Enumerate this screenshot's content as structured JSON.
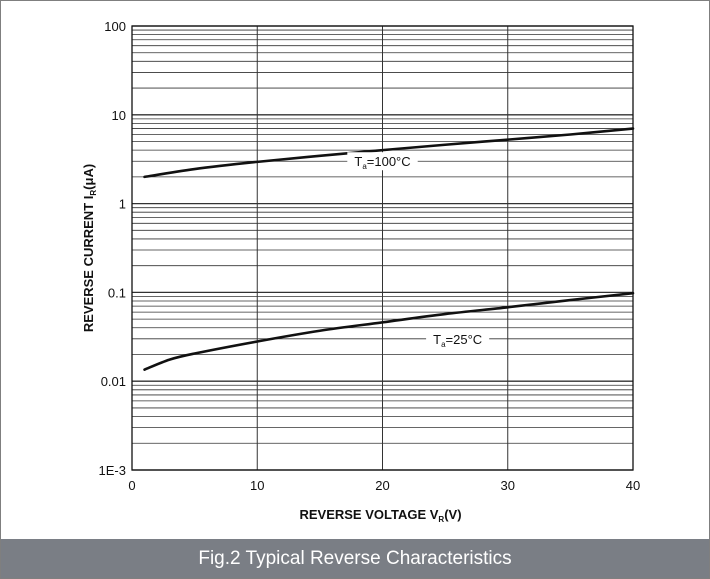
{
  "caption": "Fig.2 Typical Reverse Characteristics",
  "chart_data": {
    "type": "line",
    "xlabel": {
      "main": "REVERSE VOLTAGE",
      "symbol": "V",
      "subscript": "R",
      "unit": "(V)"
    },
    "ylabel": {
      "main": "REVERSE CURRENT",
      "symbol": "I",
      "subscript": "R",
      "unit": "(μA)"
    },
    "xlim": [
      0,
      40
    ],
    "ylim": [
      0.001,
      100
    ],
    "yscale": "log",
    "grid": true,
    "x_ticks": [
      0,
      10,
      20,
      30,
      40
    ],
    "x_tick_labels": [
      "0",
      "10",
      "20",
      "30",
      "40"
    ],
    "y_ticks": [
      0.001,
      0.01,
      0.1,
      1,
      10,
      100
    ],
    "y_tick_labels": [
      "1E-3",
      "0.01",
      "0.1",
      "1",
      "10",
      "100"
    ],
    "series": [
      {
        "annotation": {
          "prefix": "T",
          "subscript": "a",
          "suffix": "=100°C"
        },
        "x": [
          1,
          5,
          10,
          15,
          20,
          25,
          30,
          35,
          40
        ],
        "y": [
          2.0,
          2.45,
          2.95,
          3.45,
          4.0,
          4.6,
          5.25,
          6.0,
          7.0
        ]
      },
      {
        "annotation": {
          "prefix": "T",
          "subscript": "a",
          "suffix": "=25°C"
        },
        "x": [
          1,
          3,
          5,
          10,
          15,
          20,
          25,
          30,
          35,
          40
        ],
        "y": [
          0.0135,
          0.0175,
          0.0205,
          0.028,
          0.037,
          0.046,
          0.057,
          0.068,
          0.082,
          0.098
        ]
      }
    ],
    "annotation_positions": [
      [
        20,
        3.0
      ],
      [
        26,
        0.03
      ]
    ],
    "colors": {
      "grid": "#333333",
      "curve": "#111111",
      "caption_bg": "#7a7e85"
    }
  }
}
